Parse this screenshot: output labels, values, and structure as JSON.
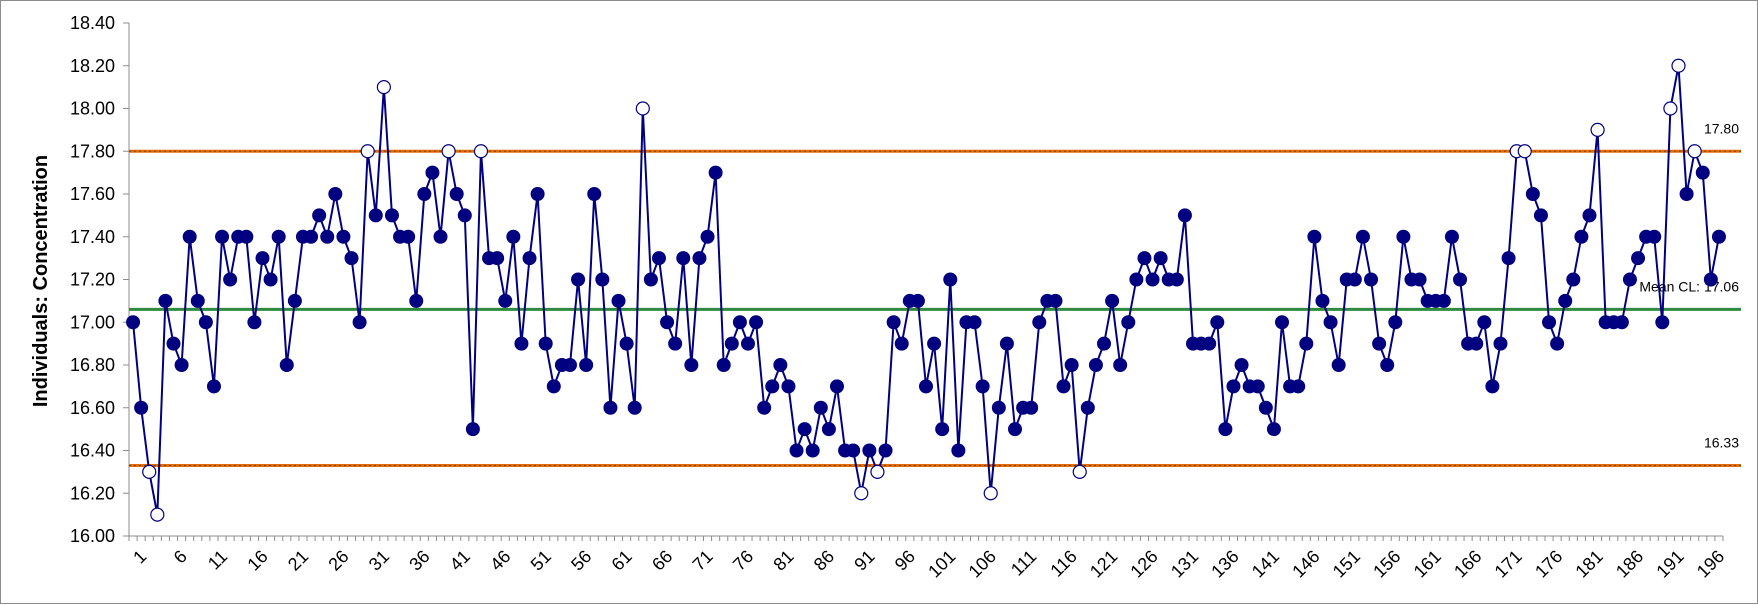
{
  "chart_data": {
    "type": "line",
    "title": "",
    "xlabel": "",
    "ylabel": "Individuals: Concentration",
    "ylim": [
      16.0,
      18.4
    ],
    "yticks": [
      "16.00",
      "16.20",
      "16.40",
      "16.60",
      "16.80",
      "17.00",
      "17.20",
      "17.40",
      "17.60",
      "17.80",
      "18.00",
      "18.20",
      "18.40"
    ],
    "x_tick_labels": [
      "1",
      "6",
      "11",
      "16",
      "21",
      "26",
      "31",
      "36",
      "41",
      "46",
      "51",
      "56",
      "61",
      "66",
      "71",
      "76",
      "81",
      "86",
      "91",
      "96",
      "101",
      "106",
      "111",
      "116",
      "121",
      "126",
      "131",
      "136",
      "141",
      "146",
      "151",
      "156",
      "161",
      "166",
      "171",
      "176",
      "181",
      "186",
      "191",
      "196"
    ],
    "series": [
      {
        "x_start": 1,
        "values": [
          17.0,
          16.6,
          16.3,
          16.1,
          17.1,
          16.9,
          16.8,
          17.4,
          17.1,
          17.0,
          16.7,
          17.4,
          17.2,
          17.4,
          17.4,
          17.0,
          17.3,
          17.2,
          17.4,
          16.8,
          17.1,
          17.4,
          17.4,
          17.5,
          17.4,
          17.6,
          17.4,
          17.3,
          17.0,
          17.8,
          17.5,
          18.1,
          17.5,
          17.4,
          17.4,
          17.1,
          17.6,
          17.7,
          17.4,
          17.8,
          17.6,
          17.5,
          16.5,
          17.8,
          17.3,
          17.3,
          17.1,
          17.4,
          16.9,
          17.3,
          17.6,
          16.9,
          16.7,
          16.8,
          16.8,
          17.2,
          16.8,
          17.6,
          17.2,
          16.6,
          17.1,
          16.9,
          16.6,
          18.0,
          17.2,
          17.3,
          17.0,
          16.9,
          17.3,
          16.8,
          17.3,
          17.4,
          17.7,
          16.8,
          16.9,
          17.0,
          16.9,
          17.0,
          16.6,
          16.7,
          16.8,
          16.7,
          16.4,
          16.5,
          16.4,
          16.6,
          16.5,
          16.7,
          16.4,
          16.4,
          16.2,
          16.4,
          16.3,
          16.4,
          17.0,
          16.9,
          17.1,
          17.1,
          16.7,
          16.9,
          16.5,
          17.2,
          16.4,
          17.0,
          17.0,
          16.7,
          16.2,
          16.6,
          16.9,
          16.5,
          16.6,
          16.6,
          17.0,
          17.1,
          17.1,
          16.7,
          16.8,
          16.3,
          16.6,
          16.8,
          16.9,
          17.1,
          16.8,
          17.0,
          17.2,
          17.3,
          17.2,
          17.3,
          17.2,
          17.2,
          17.5,
          16.9,
          16.9,
          16.9,
          17.0,
          16.5,
          16.7,
          16.8,
          16.7,
          16.7,
          16.6,
          16.5,
          17.0,
          16.7,
          16.7,
          16.9,
          17.4,
          17.1,
          17.0,
          16.8,
          17.2,
          17.2,
          17.4,
          17.2,
          16.9,
          16.8,
          17.0,
          17.4,
          17.2,
          17.2,
          17.1,
          17.1,
          17.1,
          17.4,
          17.2,
          16.9,
          16.9,
          17.0,
          16.7,
          16.9,
          17.3,
          17.8,
          17.8,
          17.6,
          17.5,
          17.0,
          16.9,
          17.1,
          17.2,
          17.4,
          17.5,
          17.9,
          17.0,
          17.0,
          17.0,
          17.2,
          17.3,
          17.4,
          17.4,
          17.0,
          18.0,
          18.2,
          17.6,
          17.8,
          17.7,
          17.2,
          17.4
        ]
      }
    ],
    "control_limits": {
      "ucl": {
        "value": 17.8,
        "label": "17.80"
      },
      "center": {
        "value": 17.06,
        "label": "Mean CL: 17.06"
      },
      "lcl": {
        "value": 16.33,
        "label": "16.33"
      }
    },
    "colors": {
      "line": "#000080",
      "marker": "#000080",
      "out_of_control_marker": "#000080",
      "ucl_line": "#E26B0A",
      "lcl_line": "#E26B0A",
      "center_line": "#2E8B3E",
      "axis": "#8c8c8c"
    },
    "grid": false,
    "legend": "none"
  }
}
